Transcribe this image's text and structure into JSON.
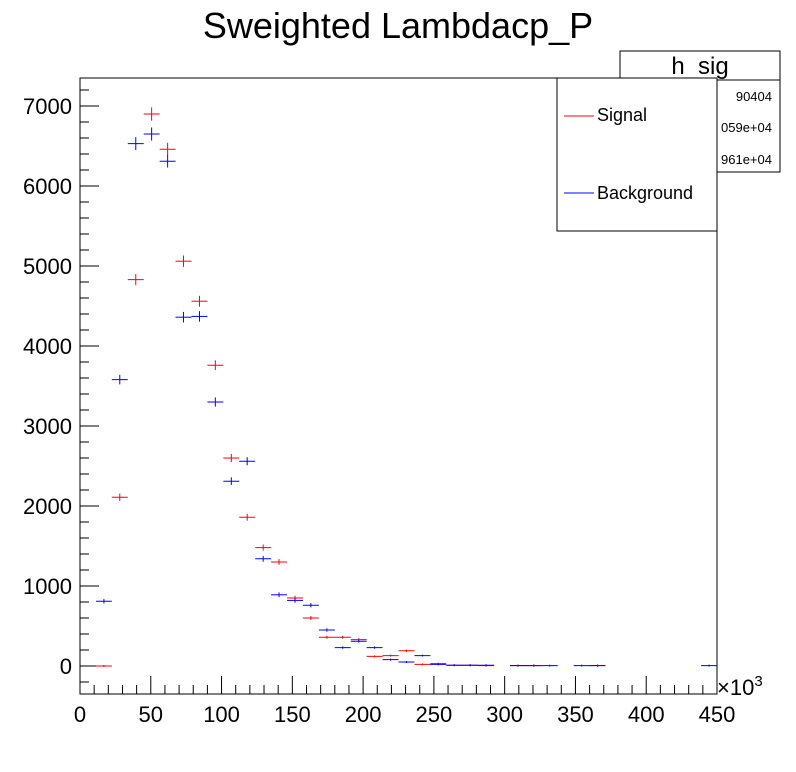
{
  "chart_data": {
    "type": "scatter",
    "title": "Sweighted Lambdacp_P",
    "xlabel": "",
    "ylabel": "",
    "xlim": [
      0,
      450
    ],
    "ylim": [
      -350,
      7350
    ],
    "x_multiplier_label": "×10",
    "x_multiplier_exponent": "3",
    "x_ticks": [
      0,
      50,
      100,
      150,
      200,
      250,
      300,
      350,
      400,
      450
    ],
    "y_ticks": [
      0,
      1000,
      2000,
      3000,
      4000,
      5000,
      6000,
      7000
    ],
    "bin_width": 11.25,
    "stats_box": {
      "name": "h_sig",
      "values": [
        "90404",
        "059e+04",
        "961e+04"
      ]
    },
    "legend": {
      "position": "top-right",
      "entries": [
        {
          "label": "Signal",
          "color": "#ff0000"
        },
        {
          "label": "Background",
          "color": "#0000ff"
        }
      ]
    },
    "series": [
      {
        "name": "Signal",
        "color": "#ff0000",
        "x": [
          16.9,
          28.1,
          39.4,
          50.6,
          61.9,
          73.1,
          84.4,
          95.6,
          106.9,
          118.1,
          129.4,
          140.6,
          151.9,
          163.1,
          174.4,
          185.6,
          196.9,
          208.1,
          219.4,
          230.6,
          241.9,
          253.1,
          264.4,
          275.6,
          286.9,
          309.4,
          320.6,
          365.6
        ],
        "y": [
          0,
          2110,
          4830,
          6900,
          6460,
          5060,
          4560,
          3760,
          2600,
          1860,
          1480,
          1300,
          850,
          600,
          360,
          360,
          330,
          120,
          130,
          190,
          20,
          30,
          10,
          10,
          5,
          5,
          5,
          5
        ]
      },
      {
        "name": "Background",
        "color": "#0000ff",
        "x": [
          16.9,
          28.1,
          39.4,
          50.6,
          61.9,
          73.1,
          84.4,
          95.6,
          106.9,
          118.1,
          129.4,
          140.6,
          151.9,
          163.1,
          174.4,
          185.6,
          196.9,
          208.1,
          219.4,
          230.6,
          241.9,
          253.1,
          264.4,
          275.6,
          286.9,
          309.4,
          320.6,
          331.9,
          354.4,
          365.6,
          444.4
        ],
        "y": [
          810,
          3580,
          6530,
          6650,
          6310,
          4360,
          4370,
          3300,
          2310,
          2560,
          1340,
          890,
          820,
          760,
          450,
          230,
          310,
          230,
          80,
          50,
          130,
          20,
          10,
          10,
          10,
          5,
          5,
          5,
          5,
          5,
          5
        ]
      }
    ]
  }
}
